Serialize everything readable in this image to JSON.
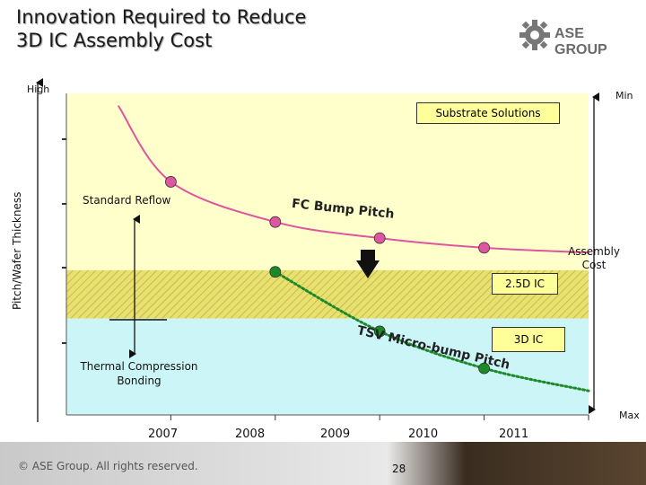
{
  "slide": {
    "title_line1": "Innovation Required to Reduce",
    "title_line2": "3D IC Assembly Cost",
    "logo_text": "ASE GROUP",
    "copyright": "© ASE Group. All rights reserved.",
    "page_number": "28"
  },
  "chart_data": {
    "type": "line",
    "title": "Innovation Required to Reduce 3D IC Assembly Cost",
    "xlabel": "",
    "ylabel": "Pitch/Wafer Thickness",
    "categories": [
      "2007",
      "2008",
      "2009",
      "2010",
      "2011"
    ],
    "x_range": [
      2006.0,
      2011.0
    ],
    "y_range": [
      0,
      10
    ],
    "y_axis_top_label": "High",
    "right_axis": {
      "label": "Assembly Cost",
      "top": "Min",
      "bottom": "Max"
    },
    "series": [
      {
        "name": "FC Bump Pitch",
        "color": "#e055a0",
        "style": "solid",
        "points": [
          {
            "x": 2006.5,
            "y": 9.6
          },
          {
            "x": 2007.0,
            "y": 7.25,
            "marker": true
          },
          {
            "x": 2008.0,
            "y": 6.0,
            "marker": true
          },
          {
            "x": 2009.0,
            "y": 5.5,
            "marker": true
          },
          {
            "x": 2010.0,
            "y": 5.2,
            "marker": true
          },
          {
            "x": 2011.0,
            "y": 5.05
          }
        ]
      },
      {
        "name": "TSV Micro-bump Pitch",
        "color": "#1d8a2a",
        "style": "dotted",
        "points": [
          {
            "x": 2008.0,
            "y": 4.45,
            "marker": true
          },
          {
            "x": 2009.0,
            "y": 2.6,
            "marker": true
          },
          {
            "x": 2010.0,
            "y": 1.45,
            "marker": true
          },
          {
            "x": 2011.0,
            "y": 0.75
          }
        ]
      }
    ],
    "bands": [
      {
        "name": "2.5D IC region",
        "y_from": 3.0,
        "y_to": 4.5,
        "color": "#e8e070",
        "pattern": "hatched"
      },
      {
        "name": "3D IC region",
        "y_from": 0.0,
        "y_to": 3.0,
        "color": "#ccf5f8"
      }
    ],
    "annotations": {
      "substrate": "Substrate Solutions",
      "standard_reflow": "Standard Reflow",
      "fc_label": "FC Bump Pitch",
      "tsv_label": "TSV Micro-bump Pitch",
      "ic25": "2.5D IC",
      "ic3d": "3D IC",
      "thermal": "Thermal Compression Bonding"
    },
    "colors": {
      "background_top": "#ffffcc",
      "band_25d": "#e8e070",
      "band_3d": "#ccf5f8",
      "fc_marker": "#e055a0",
      "tsv_marker": "#1d8a2a"
    }
  }
}
